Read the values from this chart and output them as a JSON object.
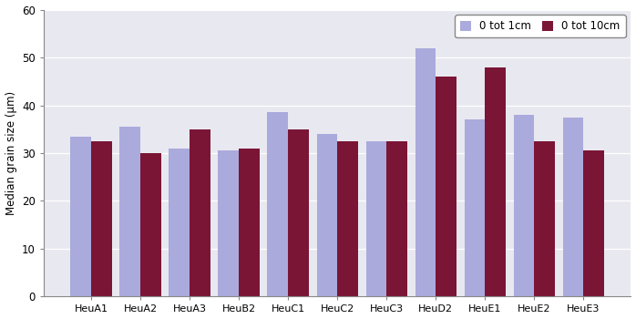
{
  "categories": [
    "HeuA1",
    "HeuA2",
    "HeuA3",
    "HeuB2",
    "HeuC1",
    "HeuC2",
    "HeuC3",
    "HeuD2",
    "HeuE1",
    "HeuE2",
    "HeuE3"
  ],
  "series1_label": "0 tot 1cm",
  "series2_label": "0 tot 10cm",
  "series1_values": [
    33.5,
    35.5,
    31.0,
    30.5,
    38.5,
    34.0,
    32.5,
    52.0,
    37.0,
    38.0,
    37.5
  ],
  "series2_values": [
    32.5,
    30.0,
    35.0,
    31.0,
    35.0,
    32.5,
    32.5,
    46.0,
    48.0,
    32.5,
    30.5
  ],
  "series1_color": "#aaaadd",
  "series2_color": "#7b1535",
  "ylabel": "Median grain size (µm)",
  "ylim": [
    0,
    60
  ],
  "yticks": [
    0,
    10,
    20,
    30,
    40,
    50,
    60
  ],
  "bar_width": 0.42,
  "plot_bg_color": "#e8e8f0",
  "fig_bg_color": "#ffffff",
  "grid_color": "#ffffff",
  "spine_color": "#888888",
  "legend_position": "upper right"
}
